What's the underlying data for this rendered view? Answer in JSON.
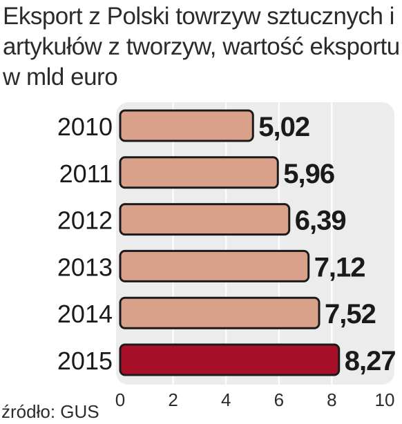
{
  "title": "Eksport z Polski towrzyw sztucznych i artykułów z tworzyw, wartość eksportu w mld euro",
  "source": "źródło: GUS",
  "chart_data": {
    "type": "bar",
    "orientation": "horizontal",
    "title": "Eksport z Polski towrzyw sztucznych i artykułów z tworzyw, wartość eksportu w mld euro",
    "categories": [
      "2010",
      "2011",
      "2012",
      "2013",
      "2014",
      "2015"
    ],
    "values": [
      5.02,
      5.96,
      6.39,
      7.12,
      7.52,
      8.27
    ],
    "value_labels": [
      "5,02",
      "5,96",
      "6,39",
      "7,12",
      "7,52",
      "8,27"
    ],
    "xlim": [
      0,
      10
    ],
    "xticks": [
      0,
      2,
      4,
      6,
      8,
      10
    ],
    "xtick_labels": [
      "0",
      "2",
      "4",
      "6",
      "8",
      "10"
    ],
    "grid": true,
    "colors": {
      "bar": "#d9a08a",
      "bar_highlight": "#a8102a",
      "bar_outline": "#1a1a1a",
      "panel": "#ececec",
      "grid": "#ffffff"
    },
    "highlight_index": 5
  }
}
